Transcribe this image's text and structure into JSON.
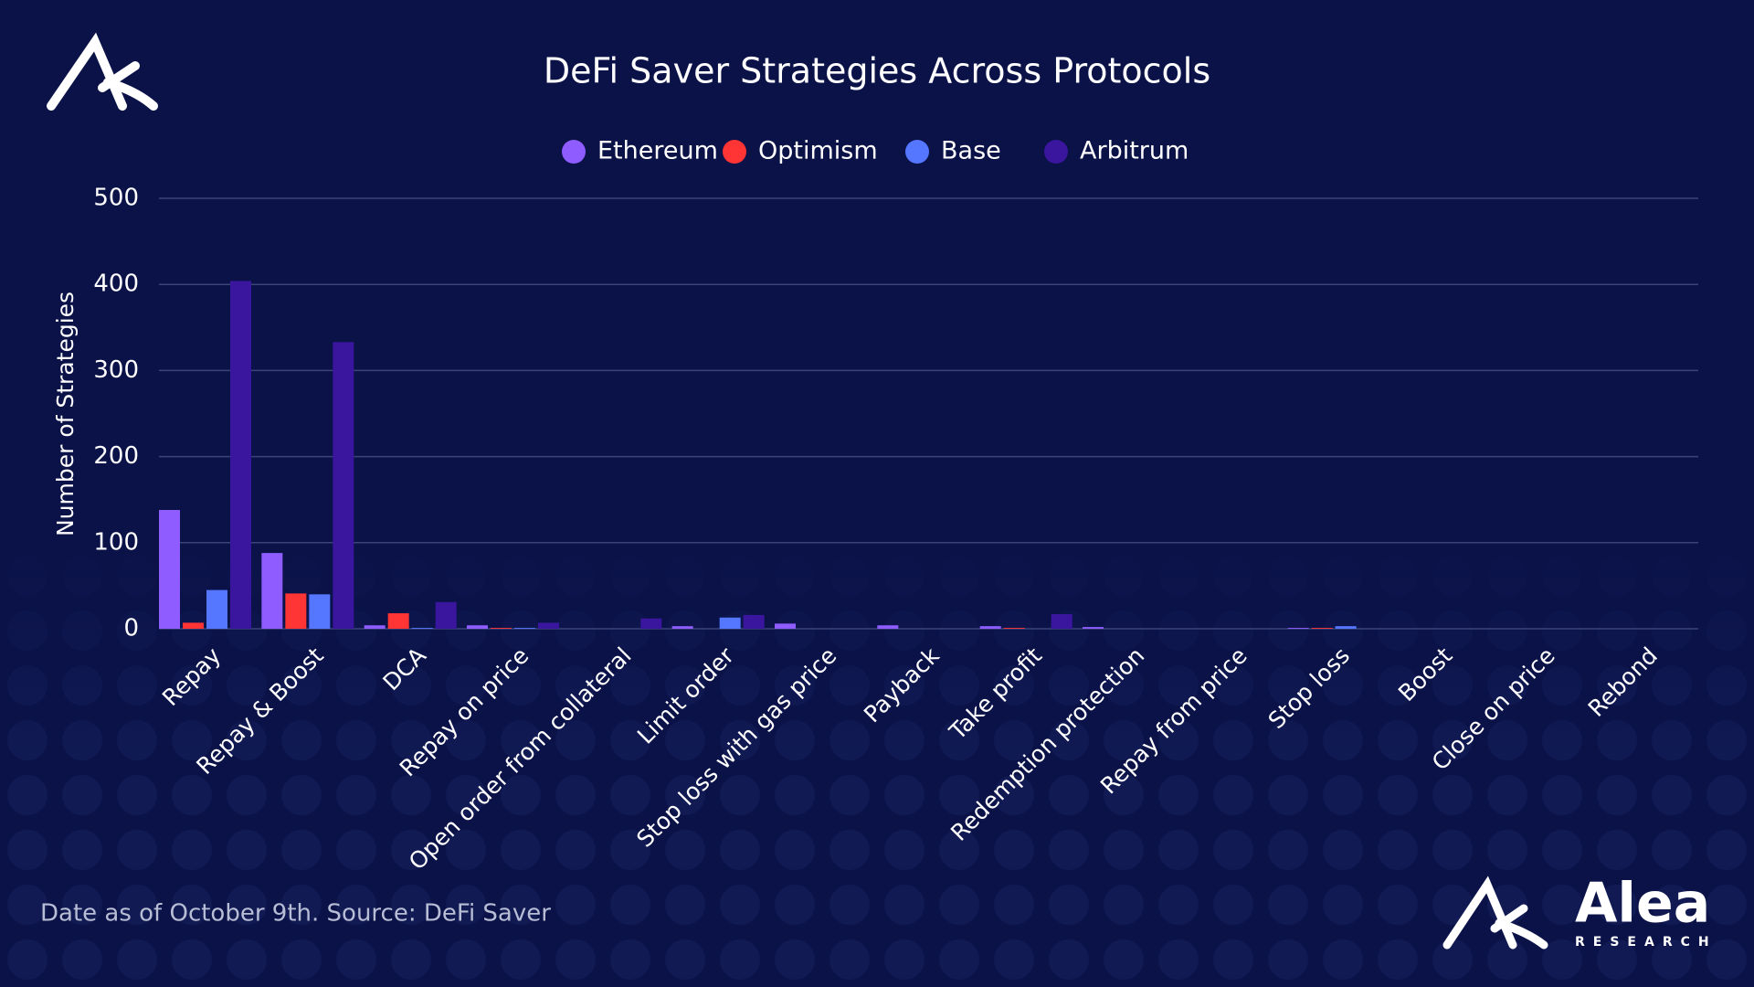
{
  "chart_data": {
    "type": "bar",
    "title": "DeFi Saver Strategies Across Protocols",
    "y_label": "Number of Strategies",
    "categories": [
      "Repay",
      "Repay & Boost",
      "DCA",
      "Repay on price",
      "Open order from collateral",
      "Limit order",
      "Stop loss with gas price",
      "Payback",
      "Take profit",
      "Redemption protection",
      "Repay from price",
      "Stop loss",
      "Boost",
      "Close on price",
      "Rebond"
    ],
    "series": [
      {
        "name": "Ethereum",
        "color": "#8f5cff",
        "values": [
          138,
          88,
          4,
          4,
          0,
          3,
          6,
          4,
          3,
          2,
          0,
          1,
          0,
          0,
          0
        ]
      },
      {
        "name": "Optimism",
        "color": "#ff3434",
        "values": [
          7,
          41,
          18,
          1,
          0,
          0,
          0,
          0,
          1,
          0,
          0,
          1,
          0,
          0,
          0
        ]
      },
      {
        "name": "Base",
        "color": "#5577ff",
        "values": [
          45,
          40,
          1,
          1,
          0,
          13,
          0,
          0,
          0,
          0,
          0,
          3,
          0,
          0,
          0
        ]
      },
      {
        "name": "Arbitrum",
        "color": "#3a159e",
        "values": [
          404,
          333,
          31,
          7,
          12,
          16,
          0,
          0,
          17,
          0,
          0,
          0,
          0,
          0,
          0
        ]
      }
    ],
    "ylim": [
      0,
      500
    ],
    "yticks": [
      0,
      100,
      200,
      300,
      400,
      500
    ],
    "grid": true,
    "legend": "top"
  },
  "footer": {
    "source": "Date as of October 9th. Source: DeFi Saver"
  },
  "brand": {
    "name": "Alea",
    "tagline": "RESEARCH"
  }
}
